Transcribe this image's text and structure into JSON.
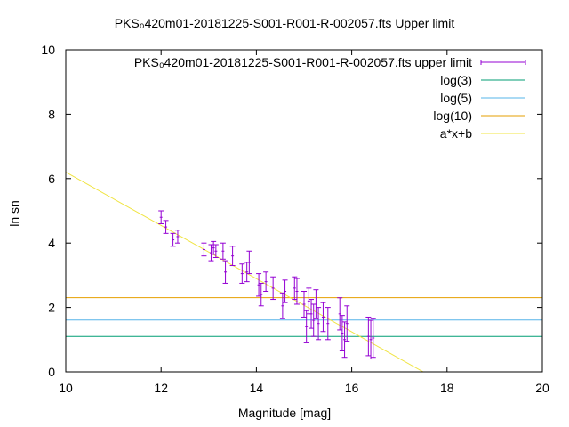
{
  "chart_data": {
    "type": "scatter",
    "title": "PKS₀420m01-20181225-S001-R001-R-002057.fts Upper limit",
    "xlabel": "Magnitude [mag]",
    "ylabel": "ln sn",
    "xlim": [
      10,
      20
    ],
    "ylim": [
      0,
      10
    ],
    "x_ticks": [
      "10",
      "12",
      "14",
      "16",
      "18",
      "20"
    ],
    "y_ticks": [
      "0",
      "2",
      "4",
      "6",
      "8",
      "10"
    ],
    "grid": false,
    "legend_position": "top-right",
    "series": [
      {
        "name": "PKS₀420m01-20181225-S001-R001-R-002057.fts upper limit",
        "kind": "errorbar",
        "color": "#9400d3",
        "points": [
          {
            "x": 12.0,
            "y": 4.8,
            "err": 0.2
          },
          {
            "x": 12.1,
            "y": 4.5,
            "err": 0.2
          },
          {
            "x": 12.25,
            "y": 4.1,
            "err": 0.2
          },
          {
            "x": 12.35,
            "y": 4.2,
            "err": 0.2
          },
          {
            "x": 12.9,
            "y": 3.8,
            "err": 0.2
          },
          {
            "x": 13.05,
            "y": 3.7,
            "err": 0.25
          },
          {
            "x": 13.1,
            "y": 3.85,
            "err": 0.2
          },
          {
            "x": 13.15,
            "y": 3.75,
            "err": 0.2
          },
          {
            "x": 13.3,
            "y": 3.75,
            "err": 0.25
          },
          {
            "x": 13.35,
            "y": 3.1,
            "err": 0.35
          },
          {
            "x": 13.5,
            "y": 3.6,
            "err": 0.3
          },
          {
            "x": 13.7,
            "y": 3.05,
            "err": 0.3
          },
          {
            "x": 13.8,
            "y": 3.1,
            "err": 0.3
          },
          {
            "x": 13.85,
            "y": 3.4,
            "err": 0.35
          },
          {
            "x": 14.05,
            "y": 2.7,
            "err": 0.35
          },
          {
            "x": 14.1,
            "y": 2.4,
            "err": 0.35
          },
          {
            "x": 14.2,
            "y": 2.8,
            "err": 0.3
          },
          {
            "x": 14.35,
            "y": 2.6,
            "err": 0.35
          },
          {
            "x": 14.55,
            "y": 2.05,
            "err": 0.4
          },
          {
            "x": 14.6,
            "y": 2.5,
            "err": 0.35
          },
          {
            "x": 14.8,
            "y": 2.6,
            "err": 0.35
          },
          {
            "x": 14.85,
            "y": 2.5,
            "err": 0.4
          },
          {
            "x": 15.0,
            "y": 2.1,
            "err": 0.4
          },
          {
            "x": 15.05,
            "y": 1.4,
            "err": 0.5
          },
          {
            "x": 15.1,
            "y": 2.2,
            "err": 0.4
          },
          {
            "x": 15.15,
            "y": 1.8,
            "err": 0.45
          },
          {
            "x": 15.2,
            "y": 1.6,
            "err": 0.5
          },
          {
            "x": 15.25,
            "y": 2.1,
            "err": 0.45
          },
          {
            "x": 15.3,
            "y": 1.5,
            "err": 0.5
          },
          {
            "x": 15.4,
            "y": 1.7,
            "err": 0.45
          },
          {
            "x": 15.5,
            "y": 1.5,
            "err": 0.5
          },
          {
            "x": 15.75,
            "y": 1.8,
            "err": 0.5
          },
          {
            "x": 15.8,
            "y": 1.2,
            "err": 0.55
          },
          {
            "x": 15.85,
            "y": 1.0,
            "err": 0.55
          },
          {
            "x": 15.9,
            "y": 1.5,
            "err": 0.55
          },
          {
            "x": 16.35,
            "y": 1.1,
            "err": 0.6
          },
          {
            "x": 16.4,
            "y": 1.0,
            "err": 0.6
          },
          {
            "x": 16.45,
            "y": 1.05,
            "err": 0.6
          }
        ]
      },
      {
        "name": "log(3)",
        "kind": "hline",
        "color": "#009e73",
        "y": 1.0986
      },
      {
        "name": "log(5)",
        "kind": "hline",
        "color": "#56b4e9",
        "y": 1.6094
      },
      {
        "name": "log(10)",
        "kind": "hline",
        "color": "#e69f00",
        "y": 2.3026
      },
      {
        "name": "a*x+b",
        "kind": "line",
        "color": "#f0e442",
        "x": [
          10.0,
          17.5
        ],
        "y": [
          6.2,
          0.0
        ]
      }
    ]
  }
}
